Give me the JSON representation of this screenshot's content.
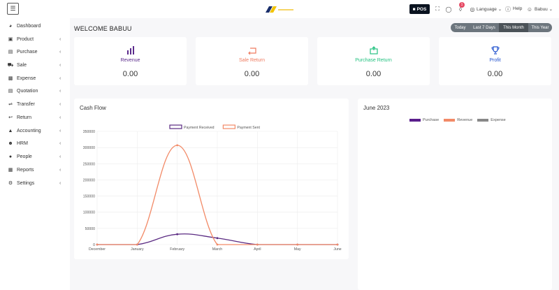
{
  "topbar": {
    "menu_icon": "hamburger-icon",
    "pos_label": "POS",
    "notification_count": "1",
    "language_label": "Language",
    "help_label": "Help",
    "user_label": "Babuu"
  },
  "sidebar": {
    "items": [
      {
        "label": "Dashboard",
        "icon": "gauge-icon",
        "has_children": false
      },
      {
        "label": "Product",
        "icon": "box-icon",
        "has_children": true
      },
      {
        "label": "Purchase",
        "icon": "card-icon",
        "has_children": true
      },
      {
        "label": "Sale",
        "icon": "cart-icon",
        "has_children": true
      },
      {
        "label": "Expense",
        "icon": "wallet-icon",
        "has_children": true
      },
      {
        "label": "Quotation",
        "icon": "document-icon",
        "has_children": true
      },
      {
        "label": "Transfer",
        "icon": "transfer-icon",
        "has_children": true
      },
      {
        "label": "Return",
        "icon": "return-icon",
        "has_children": true
      },
      {
        "label": "Accounting",
        "icon": "bank-icon",
        "has_children": true
      },
      {
        "label": "HRM",
        "icon": "hrm-icon",
        "has_children": true
      },
      {
        "label": "People",
        "icon": "user-icon",
        "has_children": true
      },
      {
        "label": "Reports",
        "icon": "report-icon",
        "has_children": true
      },
      {
        "label": "Settings",
        "icon": "gear-icon",
        "has_children": true
      }
    ]
  },
  "main": {
    "welcome": "WELCOME BABUU",
    "ranges": [
      {
        "label": "Today",
        "active": false
      },
      {
        "label": "Last 7 Days",
        "active": false
      },
      {
        "label": "This Month",
        "active": true
      },
      {
        "label": "This Year",
        "active": false
      }
    ],
    "stats": [
      {
        "label": "Revenue",
        "value": "0.00",
        "color": "#5b2b8c",
        "icon": "bar-chart-icon"
      },
      {
        "label": "Sale Return",
        "value": "0.00",
        "color": "#ef7a5f",
        "icon": "return-arrow-icon"
      },
      {
        "label": "Purchase Return",
        "value": "0.00",
        "color": "#24c281",
        "icon": "box-return-icon"
      },
      {
        "label": "Profit",
        "value": "0.00",
        "color": "#2454cf",
        "icon": "trophy-icon"
      }
    ],
    "cashflow_title": "Cash Flow",
    "monthly_title": "June 2023",
    "monthly_legend": [
      {
        "name": "Purchase",
        "color": "#5a1e8c"
      },
      {
        "name": "Revenue",
        "color": "#f28a67"
      },
      {
        "name": "Expense",
        "color": "#888888"
      }
    ]
  },
  "chart_data": {
    "type": "line",
    "x": [
      "December",
      "January",
      "February",
      "March",
      "April",
      "May",
      "June"
    ],
    "series": [
      {
        "name": "Payment Received",
        "color": "#5a2a82",
        "values": [
          0,
          0,
          32000,
          20000,
          0,
          0,
          0
        ]
      },
      {
        "name": "Payment Sent",
        "color": "#f28a67",
        "values": [
          0,
          0,
          307000,
          0,
          0,
          0,
          0
        ]
      }
    ],
    "yticks": [
      "0",
      "50000",
      "100000",
      "150000",
      "200000",
      "250000",
      "300000",
      "350000"
    ],
    "ylim": [
      0,
      350000
    ],
    "grid": true,
    "legend_position": "top"
  }
}
